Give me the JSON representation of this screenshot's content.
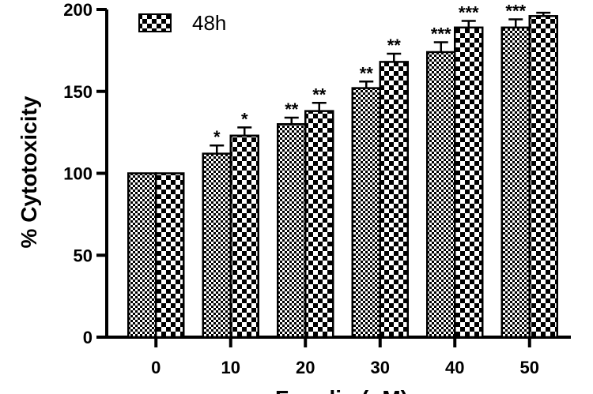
{
  "chart_data": {
    "type": "bar",
    "ylabel": "% Cytotoxicity",
    "xlabel": "Fraxdin (μM)",
    "categories": [
      "0",
      "10",
      "20",
      "30",
      "40",
      "50"
    ],
    "ylim": [
      0,
      200
    ],
    "yticks": [
      0,
      50,
      100,
      150,
      200
    ],
    "legend_position": "top-left",
    "series": [
      {
        "name": "",
        "pattern": "fine-checker",
        "values": [
          100,
          112,
          130,
          152,
          174,
          189
        ],
        "errors": [
          0,
          5,
          4,
          4,
          6,
          5
        ],
        "significance": [
          "",
          "*",
          "**",
          "**",
          "***",
          "***"
        ]
      },
      {
        "name": "48h",
        "pattern": "coarse-checker",
        "values": [
          100,
          123,
          138,
          168,
          189,
          196
        ],
        "errors": [
          0,
          5,
          5,
          5,
          4,
          2
        ],
        "significance": [
          "",
          "*",
          "**",
          "**",
          "***",
          ""
        ]
      }
    ]
  }
}
